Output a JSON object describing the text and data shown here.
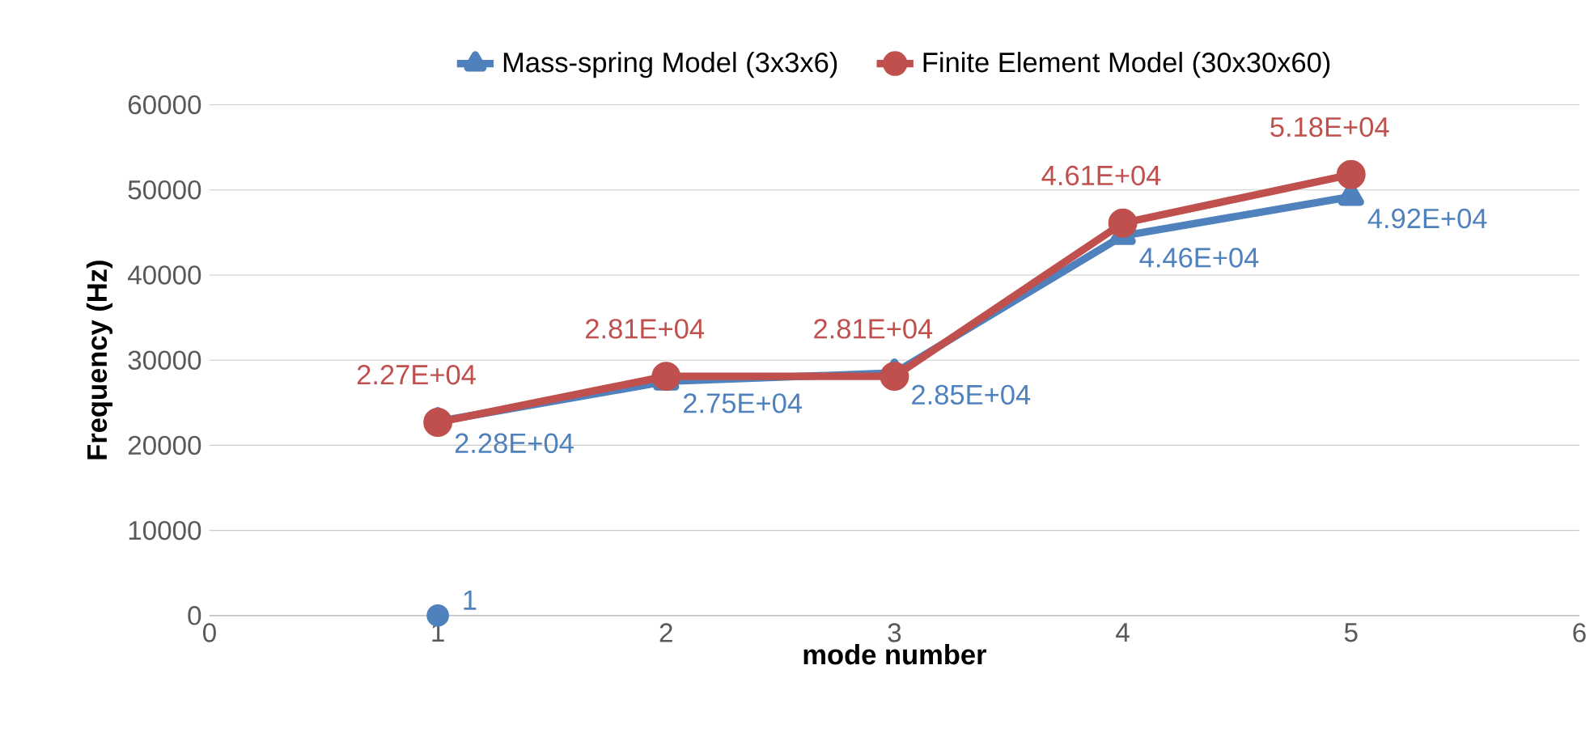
{
  "chart_data": {
    "type": "line",
    "xlabel": "mode number",
    "ylabel": "Frequency (Hz)",
    "xlim": [
      0,
      6
    ],
    "xticks": [
      0,
      1,
      2,
      3,
      4,
      5,
      6
    ],
    "ylim": [
      0,
      60000
    ],
    "yticks": [
      0,
      10000,
      20000,
      30000,
      40000,
      50000,
      60000
    ],
    "grid": "y",
    "legend": "top",
    "series": [
      {
        "name": "Mass-spring Model (3x3x6)",
        "color": "#4f81bd",
        "marker": "triangle",
        "x": [
          1,
          2,
          3,
          4,
          5
        ],
        "values": [
          22800,
          27500,
          28500,
          44600,
          49200
        ],
        "value_labels": [
          "2.28E+04",
          "2.75E+04",
          "2.85E+04",
          "4.46E+04",
          "4.92E+04"
        ]
      },
      {
        "name": "Finite Element Model (30x30x60)",
        "color": "#c0504d",
        "marker": "circle",
        "x": [
          1,
          2,
          3,
          4,
          5
        ],
        "values": [
          22700,
          28100,
          28100,
          46100,
          51800
        ],
        "value_labels": [
          "2.27E+04",
          "2.81E+04",
          "2.81E+04",
          "4.61E+04",
          "5.18E+04"
        ]
      },
      {
        "type": "scatter",
        "color": "#4f81bd",
        "marker": "circle",
        "x": [
          1
        ],
        "values": [
          0
        ]
      }
    ],
    "annotations": [
      {
        "text": "1",
        "x": 1,
        "y": 0
      }
    ]
  }
}
